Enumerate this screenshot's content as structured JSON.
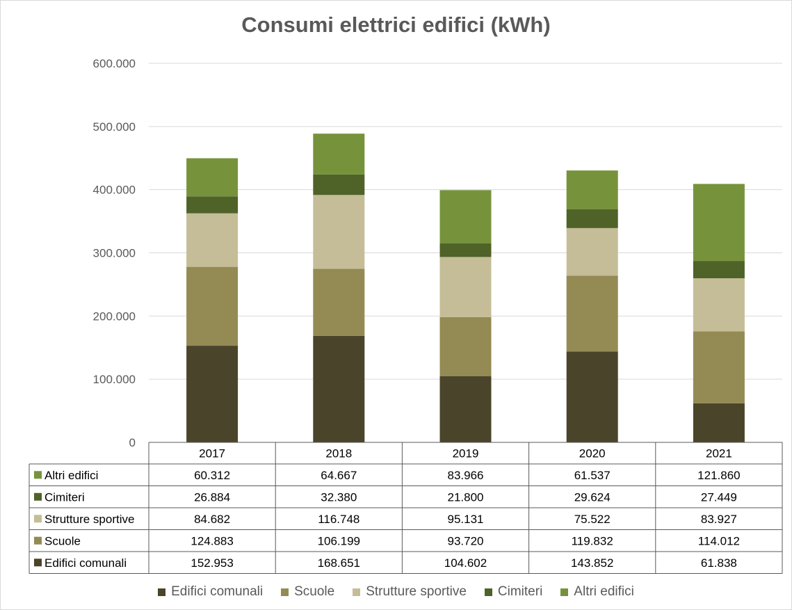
{
  "chart_data": {
    "type": "bar",
    "stacked": true,
    "title": "Consumi elettrici edifici (kWh)",
    "categories": [
      "2017",
      "2018",
      "2019",
      "2020",
      "2021"
    ],
    "ylim": [
      0,
      600000
    ],
    "yticks": [
      0,
      100000,
      200000,
      300000,
      400000,
      500000,
      600000
    ],
    "ytick_labels": [
      "0",
      "100.000",
      "200.000",
      "300.000",
      "400.000",
      "500.000",
      "600.000"
    ],
    "grid": true,
    "legend_position": "bottom",
    "data_table": true,
    "series": [
      {
        "name": "Edifici comunali",
        "color": "#4a452a",
        "values": [
          152953,
          168651,
          104602,
          143852,
          61838
        ],
        "labels": [
          "152.953",
          "168.651",
          "104.602",
          "143.852",
          "61.838"
        ]
      },
      {
        "name": "Scuole",
        "color": "#948a54",
        "values": [
          124883,
          106199,
          93720,
          119832,
          114012
        ],
        "labels": [
          "124.883",
          "106.199",
          "93.720",
          "119.832",
          "114.012"
        ]
      },
      {
        "name": "Strutture sportive",
        "color": "#c4bd97",
        "values": [
          84682,
          116748,
          95131,
          75522,
          83927
        ],
        "labels": [
          "84.682",
          "116.748",
          "95.131",
          "75.522",
          "83.927"
        ]
      },
      {
        "name": "Cimiteri",
        "color": "#4f6228",
        "values": [
          26884,
          32380,
          21800,
          29624,
          27449
        ],
        "labels": [
          "26.884",
          "32.380",
          "21.800",
          "29.624",
          "27.449"
        ]
      },
      {
        "name": "Altri edifici",
        "color": "#76933c",
        "values": [
          60312,
          64667,
          83966,
          61537,
          121860
        ],
        "labels": [
          "60.312",
          "64.667",
          "83.966",
          "61.537",
          "121.860"
        ]
      }
    ]
  }
}
